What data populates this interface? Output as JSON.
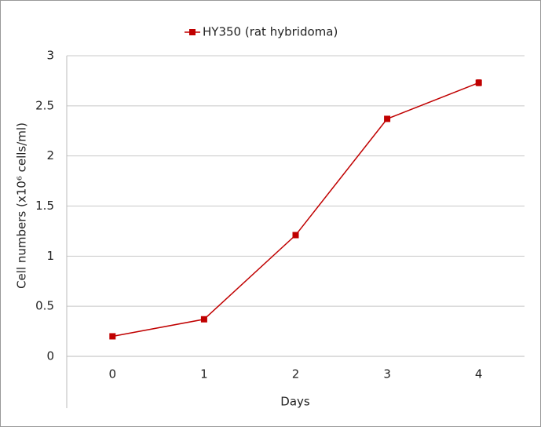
{
  "chart_data": {
    "type": "line",
    "x_label": "Days",
    "y_label": "Cell numbers (x10⁶ cells/ml)",
    "x": [
      0,
      1,
      2,
      3,
      4
    ],
    "series": [
      {
        "name": "HY350 (rat hybridoma)",
        "color": "#c00000",
        "values": [
          0.2,
          0.37,
          1.21,
          2.37,
          2.73
        ],
        "errors": [
          0.01,
          0.01,
          0.02,
          0.02,
          0.03
        ]
      }
    ],
    "xlim": [
      -0.5,
      4.5
    ],
    "xticks": [
      0,
      1,
      2,
      3,
      4
    ],
    "ylim": [
      0,
      3
    ],
    "yticks": [
      0,
      0.5,
      1,
      1.5,
      2,
      2.5,
      3
    ],
    "grid": true,
    "legend": "top"
  }
}
